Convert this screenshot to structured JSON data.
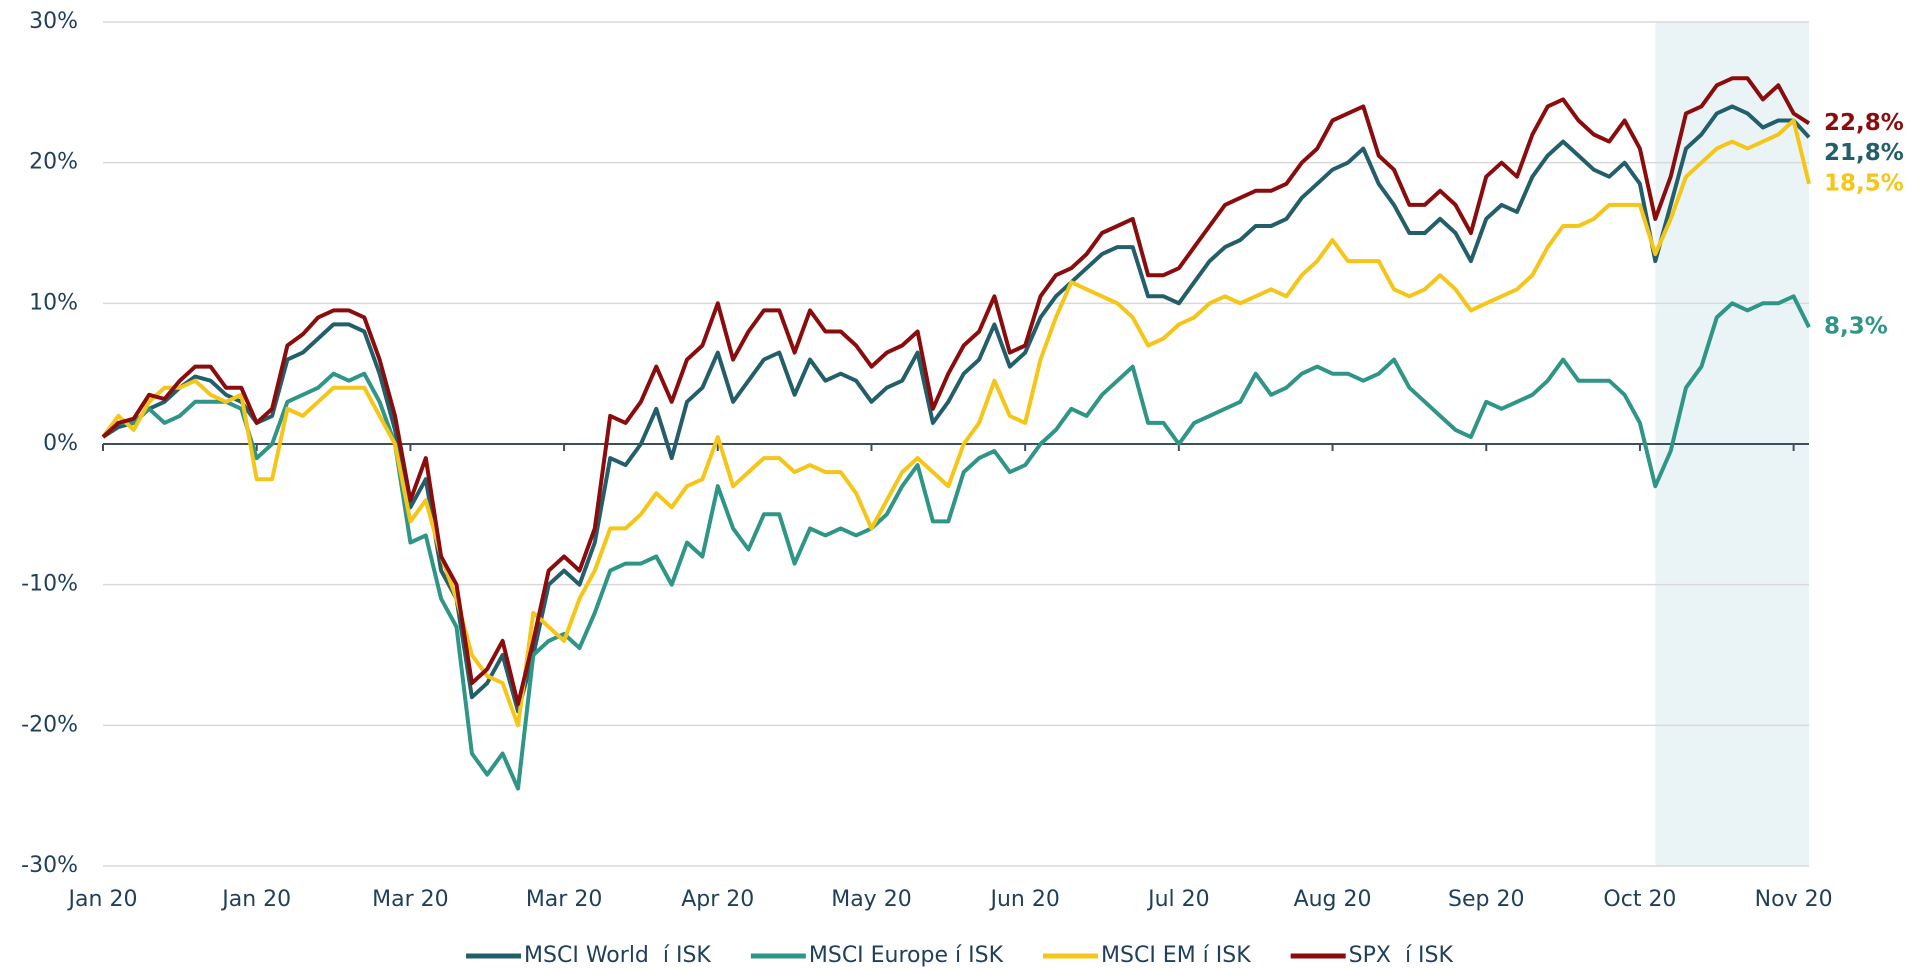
{
  "chart_data": {
    "type": "line",
    "categories": [
      "Jan 20",
      null,
      null,
      null,
      null,
      null,
      null,
      null,
      null,
      null,
      "Jan 20",
      null,
      null,
      null,
      null,
      null,
      null,
      null,
      null,
      null,
      "Mar 20",
      null,
      null,
      null,
      null,
      null,
      null,
      null,
      null,
      null,
      "Mar 20",
      null,
      null,
      null,
      null,
      null,
      null,
      null,
      null,
      null,
      "Apr 20",
      null,
      null,
      null,
      null,
      null,
      null,
      null,
      null,
      null,
      "May 20",
      null,
      null,
      null,
      null,
      null,
      null,
      null,
      null,
      null,
      "Jun 20",
      null,
      null,
      null,
      null,
      null,
      null,
      null,
      null,
      null,
      "Jul 20",
      null,
      null,
      null,
      null,
      null,
      null,
      null,
      null,
      null,
      "Aug 20",
      null,
      null,
      null,
      null,
      null,
      null,
      null,
      null,
      null,
      "Sep 20",
      null,
      null,
      null,
      null,
      null,
      null,
      null,
      null,
      null,
      "Oct 20",
      null,
      null,
      null,
      null,
      null,
      null,
      null,
      null,
      null,
      "Nov 20",
      null
    ],
    "series": [
      {
        "name": "MSCI World  í ISK",
        "color": "#235f6b",
        "end_label": "21,8%",
        "values": [
          0.5,
          1.2,
          1.5,
          2.5,
          3,
          4,
          4.8,
          4.5,
          3.5,
          3,
          1.5,
          2,
          6,
          6.5,
          7.5,
          8.5,
          8.5,
          8,
          5,
          1,
          -4.5,
          -2.5,
          -9,
          -11,
          -18,
          -17,
          -15,
          -19,
          -15,
          -10,
          -9,
          -10,
          -7,
          -1,
          -1.5,
          0,
          2.5,
          -1,
          3,
          4,
          6.5,
          3,
          4.5,
          6,
          6.5,
          3.5,
          6,
          4.5,
          5,
          4.5,
          3,
          4,
          4.5,
          6.5,
          1.5,
          3,
          5,
          6,
          8.5,
          5.5,
          6.5,
          9,
          10.5,
          11.5,
          12.5,
          13.5,
          14,
          14,
          10.5,
          10.5,
          10,
          11.5,
          13,
          14,
          14.5,
          15.5,
          15.5,
          16,
          17.5,
          18.5,
          19.5,
          20,
          21,
          18.5,
          17,
          15,
          15,
          16,
          15,
          13,
          16,
          17,
          16.5,
          19,
          20.5,
          21.5,
          20.5,
          19.5,
          19,
          20,
          18.5,
          13,
          17,
          21,
          22,
          23.5,
          24,
          23.5,
          22.5,
          23,
          23,
          21.8
        ]
      },
      {
        "name": "MSCI Europe í ISK",
        "color": "#2e9587",
        "end_label": "8,3%",
        "values": [
          0.5,
          1.5,
          1.5,
          2.5,
          1.5,
          2,
          3,
          3,
          3,
          2.5,
          -1,
          0,
          3,
          3.5,
          4,
          5,
          4.5,
          5,
          3,
          0,
          -7,
          -6.5,
          -11,
          -13,
          -22,
          -23.5,
          -22,
          -24.5,
          -15,
          -14,
          -13.5,
          -14.5,
          -12,
          -9,
          -8.5,
          -8.5,
          -8,
          -10,
          -7,
          -8,
          -3,
          -6,
          -7.5,
          -5,
          -5,
          -8.5,
          -6,
          -6.5,
          -6,
          -6.5,
          -6,
          -5,
          -3,
          -1.5,
          -5.5,
          -5.5,
          -2,
          -1,
          -0.5,
          -2,
          -1.5,
          0,
          1,
          2.5,
          2,
          3.5,
          4.5,
          5.5,
          1.5,
          1.5,
          0,
          1.5,
          2,
          2.5,
          3,
          5,
          3.5,
          4,
          5,
          5.5,
          5,
          5,
          4.5,
          5,
          6,
          4,
          3,
          2,
          1,
          0.5,
          3,
          2.5,
          3,
          3.5,
          4.5,
          6,
          4.5,
          4.5,
          4.5,
          3.5,
          1.5,
          -3,
          -0.5,
          4,
          5.5,
          9,
          10,
          9.5,
          10,
          10,
          10.5,
          8.3
        ]
      },
      {
        "name": "MSCI EM í ISK",
        "color": "#f5c518",
        "end_label": "18,5%",
        "values": [
          0.5,
          2,
          1,
          3,
          4,
          4,
          4.5,
          3.5,
          3,
          3.5,
          -2.5,
          -2.5,
          2.5,
          2,
          3,
          4,
          4,
          4,
          2,
          0,
          -5.5,
          -4,
          -8,
          -11,
          -15,
          -16.5,
          -17,
          -20,
          -12,
          -13,
          -14,
          -11,
          -9,
          -6,
          -6,
          -5,
          -3.5,
          -4.5,
          -3,
          -2.5,
          0.5,
          -3,
          -2,
          -1,
          -1,
          -2,
          -1.5,
          -2,
          -2,
          -3.5,
          -6,
          -4,
          -2,
          -1,
          -2,
          -3,
          0,
          1.5,
          4.5,
          2,
          1.5,
          6,
          9,
          11.5,
          11,
          10.5,
          10,
          9,
          7,
          7.5,
          8.5,
          9,
          10,
          10.5,
          10,
          10.5,
          11,
          10.5,
          12,
          13,
          14.5,
          13,
          13,
          13,
          11,
          10.5,
          11,
          12,
          11,
          9.5,
          10,
          10.5,
          11,
          12,
          14,
          15.5,
          15.5,
          16,
          17,
          17,
          17,
          13.5,
          16,
          19,
          20,
          21,
          21.5,
          21,
          21.5,
          22,
          23,
          18.5
        ]
      },
      {
        "name": "SPX  í ISK",
        "color": "#8b0c0c",
        "end_label": "22,8%",
        "values": [
          0.5,
          1.5,
          1.8,
          3.5,
          3.2,
          4.5,
          5.5,
          5.5,
          4,
          4,
          1.5,
          2.5,
          7,
          7.8,
          9,
          9.5,
          9.5,
          9,
          6,
          2,
          -4,
          -1,
          -8,
          -10,
          -17,
          -16,
          -14,
          -18.5,
          -14,
          -9,
          -8,
          -9,
          -6,
          2,
          1.5,
          3,
          5.5,
          3,
          6,
          7,
          10,
          6,
          8,
          9.5,
          9.5,
          6.5,
          9.5,
          8,
          8,
          7,
          5.5,
          6.5,
          7,
          8,
          2.5,
          5,
          7,
          8,
          10.5,
          6.5,
          7,
          10.5,
          12,
          12.5,
          13.5,
          15,
          15.5,
          16,
          12,
          12,
          12.5,
          14,
          15.5,
          17,
          17.5,
          18,
          18,
          18.5,
          20,
          21,
          23,
          23.5,
          24,
          20.5,
          19.5,
          17,
          17,
          18,
          17,
          15,
          19,
          20,
          19,
          22,
          24,
          24.5,
          23,
          22,
          21.5,
          23,
          21,
          16,
          19,
          23.5,
          24,
          25.5,
          26,
          26,
          24.5,
          25.5,
          23.5,
          22.8
        ]
      }
    ],
    "highlight_start": 101,
    "ylim": [
      -30,
      30
    ],
    "yticks": [
      {
        "value": -30,
        "label": "-30%"
      },
      {
        "value": -20,
        "label": "-20%"
      },
      {
        "value": -10,
        "label": "-10%"
      },
      {
        "value": 0,
        "label": "0%"
      },
      {
        "value": 10,
        "label": "10%"
      },
      {
        "value": 20,
        "label": "20%"
      },
      {
        "value": 30,
        "label": "30%"
      }
    ],
    "grid": true,
    "legend": "bottom"
  }
}
